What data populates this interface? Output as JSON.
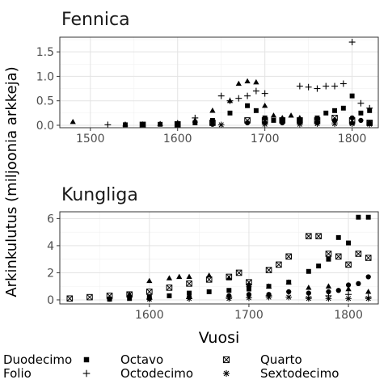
{
  "figure": {
    "y_axis_title": "Arkinkulutus (miljoonia arkkeja)",
    "x_axis_title": "Vuosi"
  },
  "legend": {
    "items": [
      {
        "label": "Duodecimo",
        "symbol": "circle"
      },
      {
        "label": "Folio",
        "symbol": "triangle"
      },
      {
        "label": "Octavo",
        "symbol": "square"
      },
      {
        "label": "Octodecimo",
        "symbol": "plus"
      },
      {
        "label": "Quarto",
        "symbol": "boxed-x"
      },
      {
        "label": "Sextodecimo",
        "symbol": "asterisk"
      }
    ]
  },
  "chart_data": [
    {
      "type": "scatter",
      "title": "Fennica",
      "xlabel": "Vuosi",
      "ylabel": "Arkinkulutus (miljoonia arkkeja)",
      "xlim": [
        1465,
        1830
      ],
      "ylim": [
        -0.05,
        1.8
      ],
      "x_ticks": [
        1500,
        1600,
        1700,
        1800
      ],
      "y_ticks": [
        0.0,
        0.5,
        1.0,
        1.5
      ],
      "y_tick_labels": [
        "0.0",
        "0.5",
        "1.0",
        "1.5"
      ],
      "grid": true,
      "series": [
        {
          "name": "Folio",
          "symbol": "triangle",
          "points": [
            [
              1480,
              0.07
            ],
            [
              1540,
              0.02
            ],
            [
              1560,
              0.02
            ],
            [
              1580,
              0.03
            ],
            [
              1600,
              0.05
            ],
            [
              1620,
              0.1
            ],
            [
              1640,
              0.3
            ],
            [
              1660,
              0.5
            ],
            [
              1670,
              0.85
            ],
            [
              1680,
              0.9
            ],
            [
              1690,
              0.88
            ],
            [
              1700,
              0.4
            ],
            [
              1710,
              0.2
            ],
            [
              1720,
              0.15
            ],
            [
              1730,
              0.2
            ],
            [
              1740,
              0.15
            ],
            [
              1760,
              0.1
            ],
            [
              1780,
              0.1
            ],
            [
              1800,
              0.05
            ],
            [
              1820,
              0.03
            ]
          ]
        },
        {
          "name": "Octavo",
          "symbol": "square",
          "points": [
            [
              1540,
              0.01
            ],
            [
              1560,
              0.01
            ],
            [
              1580,
              0.02
            ],
            [
              1600,
              0.03
            ],
            [
              1620,
              0.05
            ],
            [
              1640,
              0.1
            ],
            [
              1660,
              0.25
            ],
            [
              1680,
              0.4
            ],
            [
              1690,
              0.3
            ],
            [
              1700,
              0.15
            ],
            [
              1710,
              0.1
            ],
            [
              1720,
              0.1
            ],
            [
              1740,
              0.1
            ],
            [
              1760,
              0.15
            ],
            [
              1770,
              0.25
            ],
            [
              1780,
              0.3
            ],
            [
              1790,
              0.35
            ],
            [
              1800,
              0.6
            ],
            [
              1810,
              0.25
            ],
            [
              1820,
              0.3
            ]
          ]
        },
        {
          "name": "Octodecimo",
          "symbol": "plus",
          "points": [
            [
              1520,
              0.01
            ],
            [
              1620,
              0.15
            ],
            [
              1650,
              0.6
            ],
            [
              1660,
              0.5
            ],
            [
              1670,
              0.55
            ],
            [
              1680,
              0.6
            ],
            [
              1690,
              0.7
            ],
            [
              1700,
              0.65
            ],
            [
              1740,
              0.8
            ],
            [
              1750,
              0.78
            ],
            [
              1760,
              0.75
            ],
            [
              1770,
              0.8
            ],
            [
              1780,
              0.8
            ],
            [
              1790,
              0.85
            ],
            [
              1800,
              1.7
            ],
            [
              1810,
              0.45
            ],
            [
              1820,
              0.35
            ]
          ]
        },
        {
          "name": "Duodecimo",
          "symbol": "circle",
          "points": [
            [
              1600,
              0.01
            ],
            [
              1640,
              0.02
            ],
            [
              1680,
              0.05
            ],
            [
              1700,
              0.05
            ],
            [
              1720,
              0.05
            ],
            [
              1740,
              0.05
            ],
            [
              1760,
              0.05
            ],
            [
              1780,
              0.1
            ],
            [
              1800,
              0.15
            ],
            [
              1810,
              0.1
            ],
            [
              1820,
              0.05
            ]
          ]
        },
        {
          "name": "Quarto",
          "symbol": "boxed-x",
          "points": [
            [
              1560,
              0.01
            ],
            [
              1600,
              0.02
            ],
            [
              1640,
              0.05
            ],
            [
              1680,
              0.1
            ],
            [
              1700,
              0.1
            ],
            [
              1720,
              0.1
            ],
            [
              1740,
              0.1
            ],
            [
              1760,
              0.1
            ],
            [
              1780,
              0.15
            ],
            [
              1800,
              0.1
            ],
            [
              1820,
              0.05
            ]
          ]
        },
        {
          "name": "Sextodecimo",
          "symbol": "asterisk",
          "points": [
            [
              1650,
              0.01
            ],
            [
              1700,
              0.02
            ],
            [
              1740,
              0.02
            ],
            [
              1760,
              0.03
            ],
            [
              1780,
              0.03
            ],
            [
              1800,
              0.03
            ],
            [
              1820,
              0.02
            ]
          ]
        }
      ]
    },
    {
      "type": "scatter",
      "title": "Kungliga",
      "xlabel": "Vuosi",
      "ylabel": "Arkinkulutus (miljoonia arkkeja)",
      "xlim": [
        1510,
        1830
      ],
      "ylim": [
        -0.3,
        6.5
      ],
      "x_ticks": [
        1600,
        1700,
        1800
      ],
      "y_ticks": [
        0,
        2,
        4,
        6
      ],
      "y_tick_labels": [
        "0",
        "2",
        "4",
        "6"
      ],
      "grid": true,
      "series": [
        {
          "name": "Quarto",
          "symbol": "boxed-x",
          "points": [
            [
              1520,
              0.1
            ],
            [
              1540,
              0.2
            ],
            [
              1560,
              0.3
            ],
            [
              1580,
              0.4
            ],
            [
              1600,
              0.6
            ],
            [
              1620,
              0.9
            ],
            [
              1640,
              1.2
            ],
            [
              1660,
              1.5
            ],
            [
              1680,
              1.7
            ],
            [
              1690,
              2.0
            ],
            [
              1700,
              1.3
            ],
            [
              1720,
              2.2
            ],
            [
              1730,
              2.6
            ],
            [
              1740,
              3.2
            ],
            [
              1760,
              4.7
            ],
            [
              1770,
              4.7
            ],
            [
              1780,
              3.4
            ],
            [
              1790,
              3.2
            ],
            [
              1800,
              2.6
            ],
            [
              1810,
              3.4
            ],
            [
              1820,
              3.1
            ]
          ]
        },
        {
          "name": "Octavo",
          "symbol": "square",
          "points": [
            [
              1560,
              0.05
            ],
            [
              1580,
              0.1
            ],
            [
              1600,
              0.2
            ],
            [
              1620,
              0.3
            ],
            [
              1640,
              0.5
            ],
            [
              1660,
              0.6
            ],
            [
              1680,
              0.7
            ],
            [
              1700,
              0.8
            ],
            [
              1720,
              1.0
            ],
            [
              1740,
              1.3
            ],
            [
              1760,
              2.1
            ],
            [
              1770,
              2.5
            ],
            [
              1780,
              3.0
            ],
            [
              1790,
              4.6
            ],
            [
              1800,
              4.2
            ],
            [
              1810,
              6.1
            ],
            [
              1820,
              6.1
            ]
          ]
        },
        {
          "name": "Folio",
          "symbol": "triangle",
          "points": [
            [
              1580,
              0.4
            ],
            [
              1600,
              1.4
            ],
            [
              1620,
              1.6
            ],
            [
              1630,
              1.7
            ],
            [
              1640,
              1.7
            ],
            [
              1660,
              1.8
            ],
            [
              1680,
              1.6
            ],
            [
              1700,
              1.1
            ],
            [
              1720,
              1.0
            ],
            [
              1740,
              1.3
            ],
            [
              1760,
              0.9
            ],
            [
              1780,
              1.0
            ],
            [
              1800,
              0.8
            ],
            [
              1820,
              0.6
            ]
          ]
        },
        {
          "name": "Duodecimo",
          "symbol": "circle",
          "points": [
            [
              1560,
              0.05
            ],
            [
              1600,
              0.1
            ],
            [
              1640,
              0.2
            ],
            [
              1680,
              0.3
            ],
            [
              1700,
              0.4
            ],
            [
              1720,
              0.4
            ],
            [
              1740,
              0.6
            ],
            [
              1760,
              0.5
            ],
            [
              1780,
              0.6
            ],
            [
              1790,
              0.7
            ],
            [
              1800,
              1.1
            ],
            [
              1810,
              1.2
            ],
            [
              1820,
              1.7
            ]
          ]
        },
        {
          "name": "Octodecimo",
          "symbol": "plus",
          "points": [
            [
              1640,
              0.1
            ],
            [
              1680,
              0.2
            ],
            [
              1720,
              0.3
            ],
            [
              1760,
              0.2
            ],
            [
              1780,
              0.3
            ],
            [
              1800,
              0.4
            ],
            [
              1820,
              0.2
            ]
          ]
        },
        {
          "name": "Sextodecimo",
          "symbol": "asterisk",
          "points": [
            [
              1600,
              0.05
            ],
            [
              1640,
              0.1
            ],
            [
              1680,
              0.1
            ],
            [
              1700,
              0.15
            ],
            [
              1720,
              0.2
            ],
            [
              1740,
              0.2
            ],
            [
              1760,
              0.1
            ],
            [
              1780,
              0.1
            ],
            [
              1800,
              0.1
            ],
            [
              1820,
              0.1
            ]
          ]
        }
      ]
    }
  ]
}
